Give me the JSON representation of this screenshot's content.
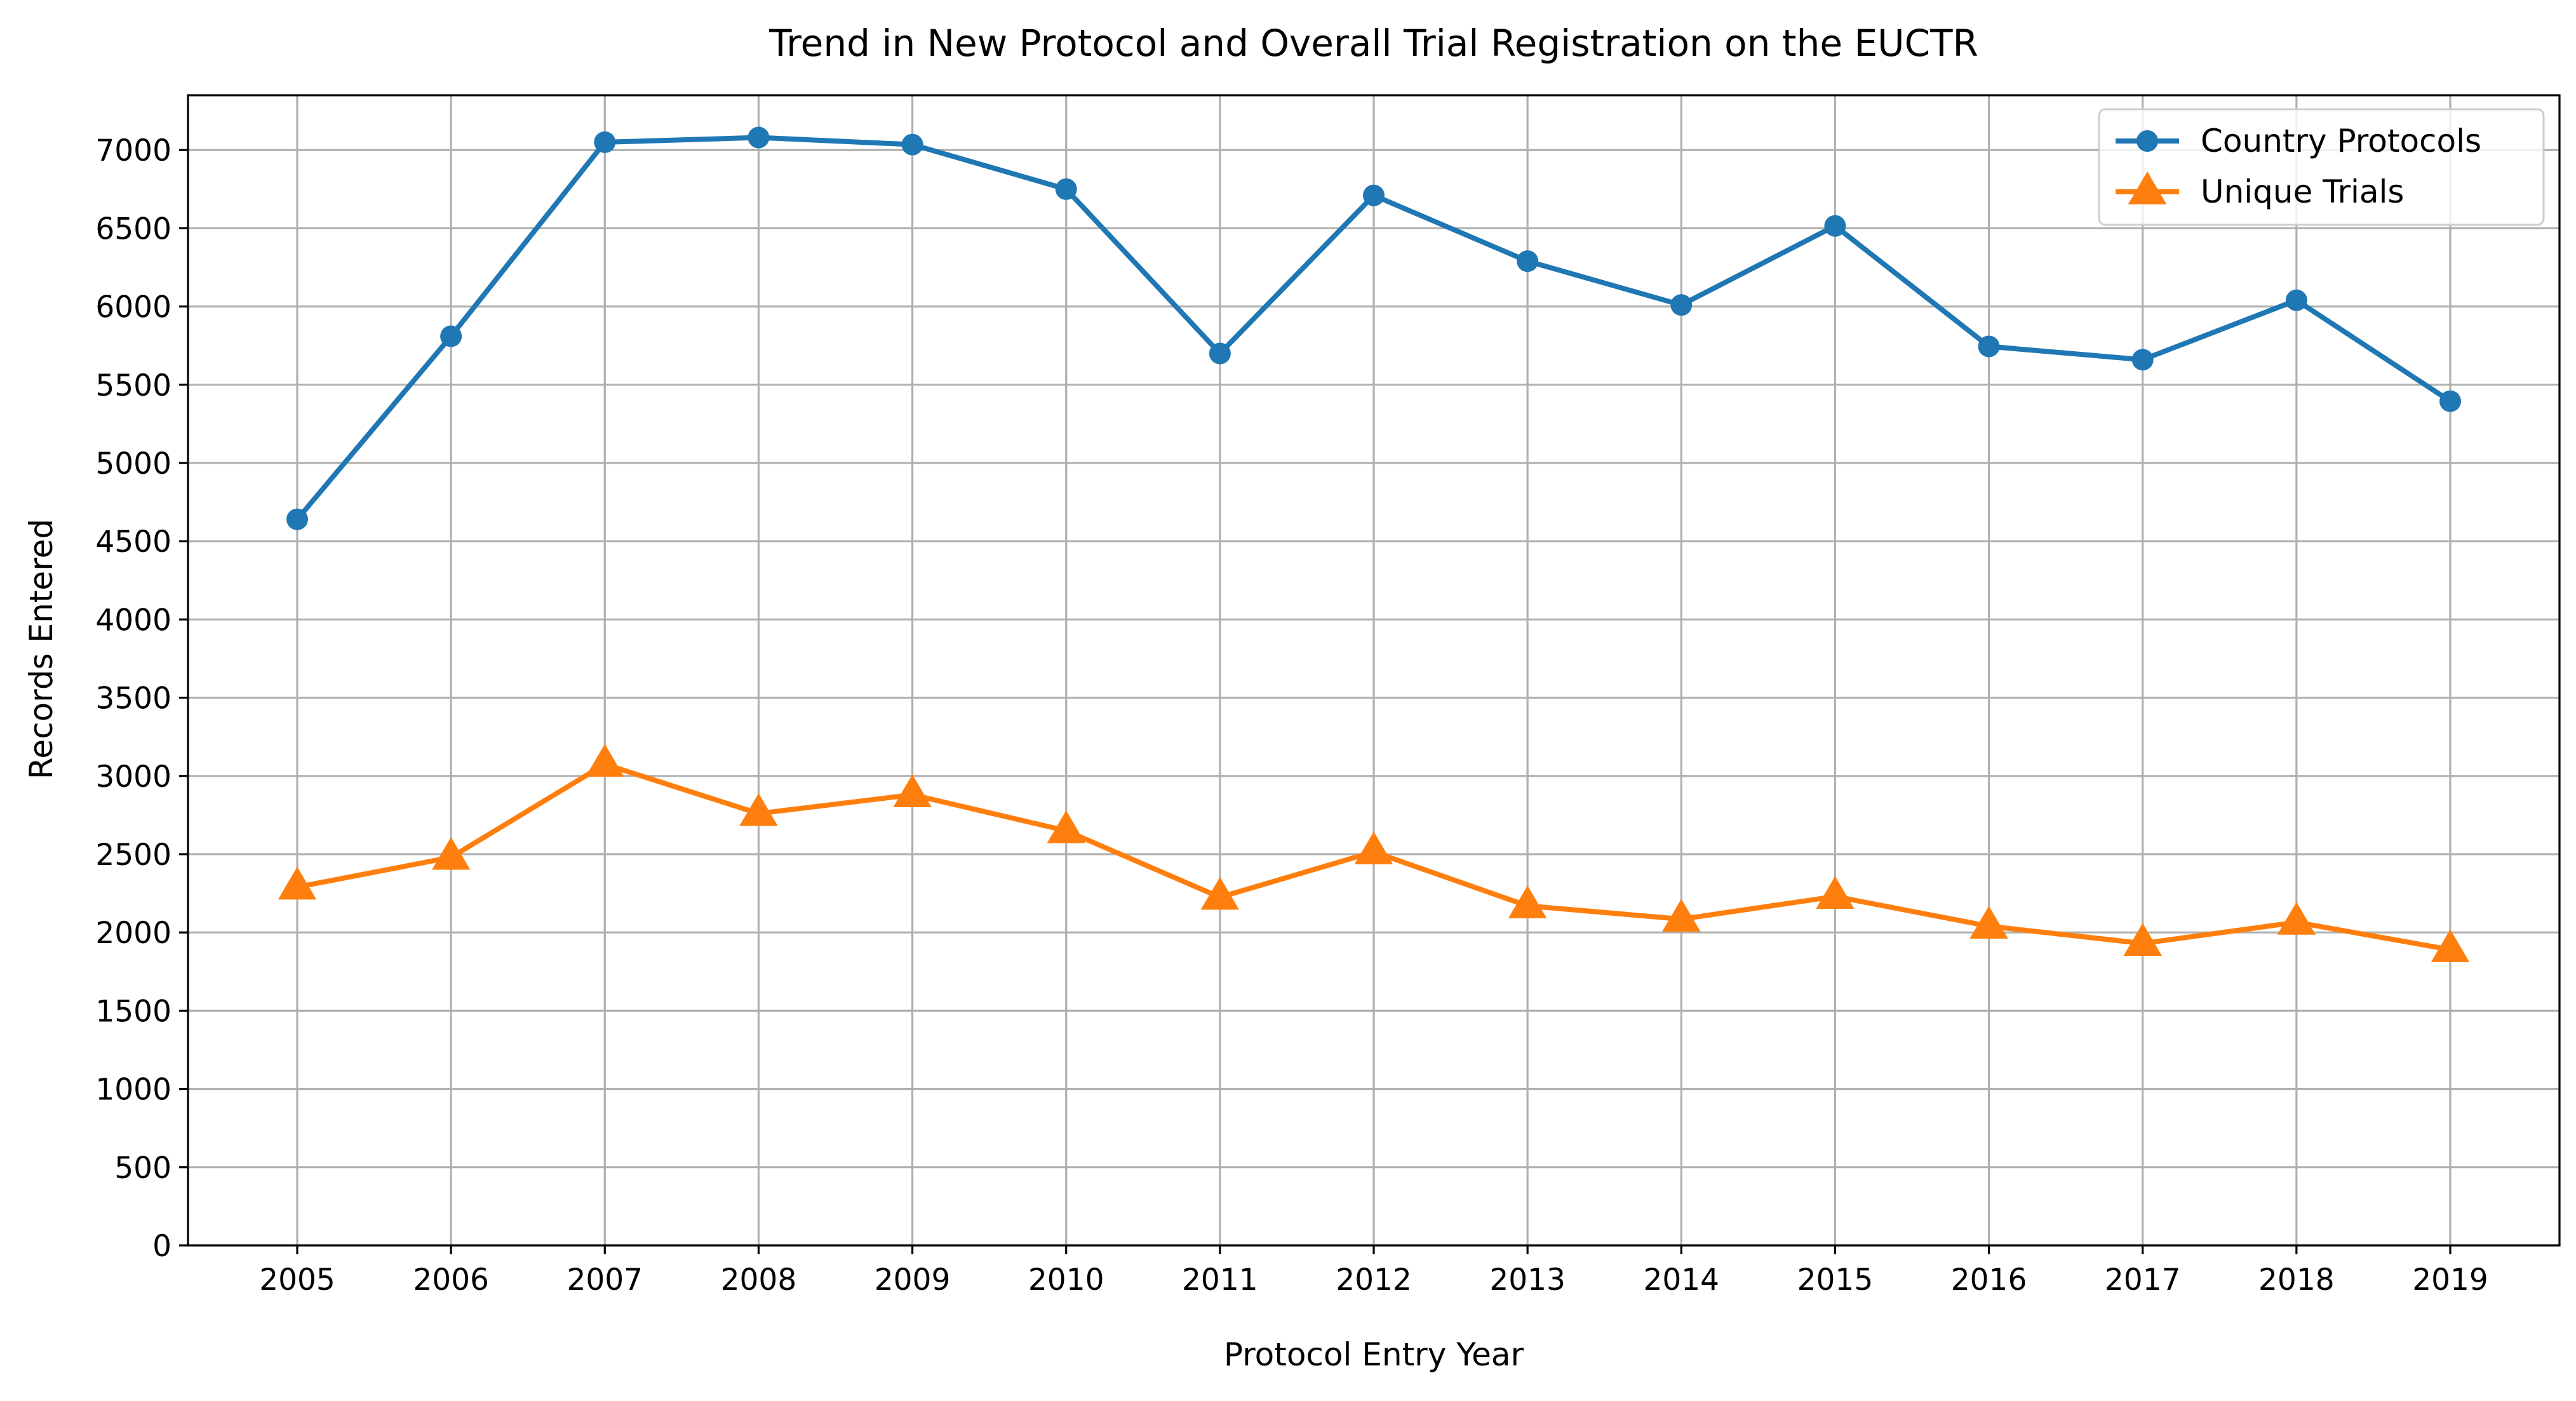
{
  "chart_data": {
    "type": "line",
    "title": "Trend in New Protocol and Overall Trial Registration on the EUCTR",
    "xlabel": "Protocol Entry Year",
    "ylabel": "Records Entered",
    "categories": [
      "2005",
      "2006",
      "2007",
      "2008",
      "2009",
      "2010",
      "2011",
      "2012",
      "2013",
      "2014",
      "2015",
      "2016",
      "2017",
      "2018",
      "2019"
    ],
    "y_ticks": [
      "0",
      "500",
      "1000",
      "1500",
      "2000",
      "2500",
      "3000",
      "3500",
      "4000",
      "4500",
      "5000",
      "5500",
      "6000",
      "6500",
      "7000"
    ],
    "ylim": [
      0,
      7350
    ],
    "grid": true,
    "legend_position": "top-right",
    "series": [
      {
        "name": "Country Protocols",
        "color": "#1f77b4",
        "marker": "circle",
        "values": [
          4640,
          5810,
          7050,
          7080,
          7035,
          6750,
          5700,
          6710,
          6290,
          6010,
          6515,
          5745,
          5660,
          6040,
          5395
        ]
      },
      {
        "name": "Unique Trials",
        "color": "#ff7f0e",
        "marker": "triangle",
        "values": [
          2290,
          2480,
          3075,
          2760,
          2880,
          2650,
          2225,
          2515,
          2170,
          2085,
          2230,
          2040,
          1930,
          2065,
          1890
        ]
      }
    ]
  }
}
